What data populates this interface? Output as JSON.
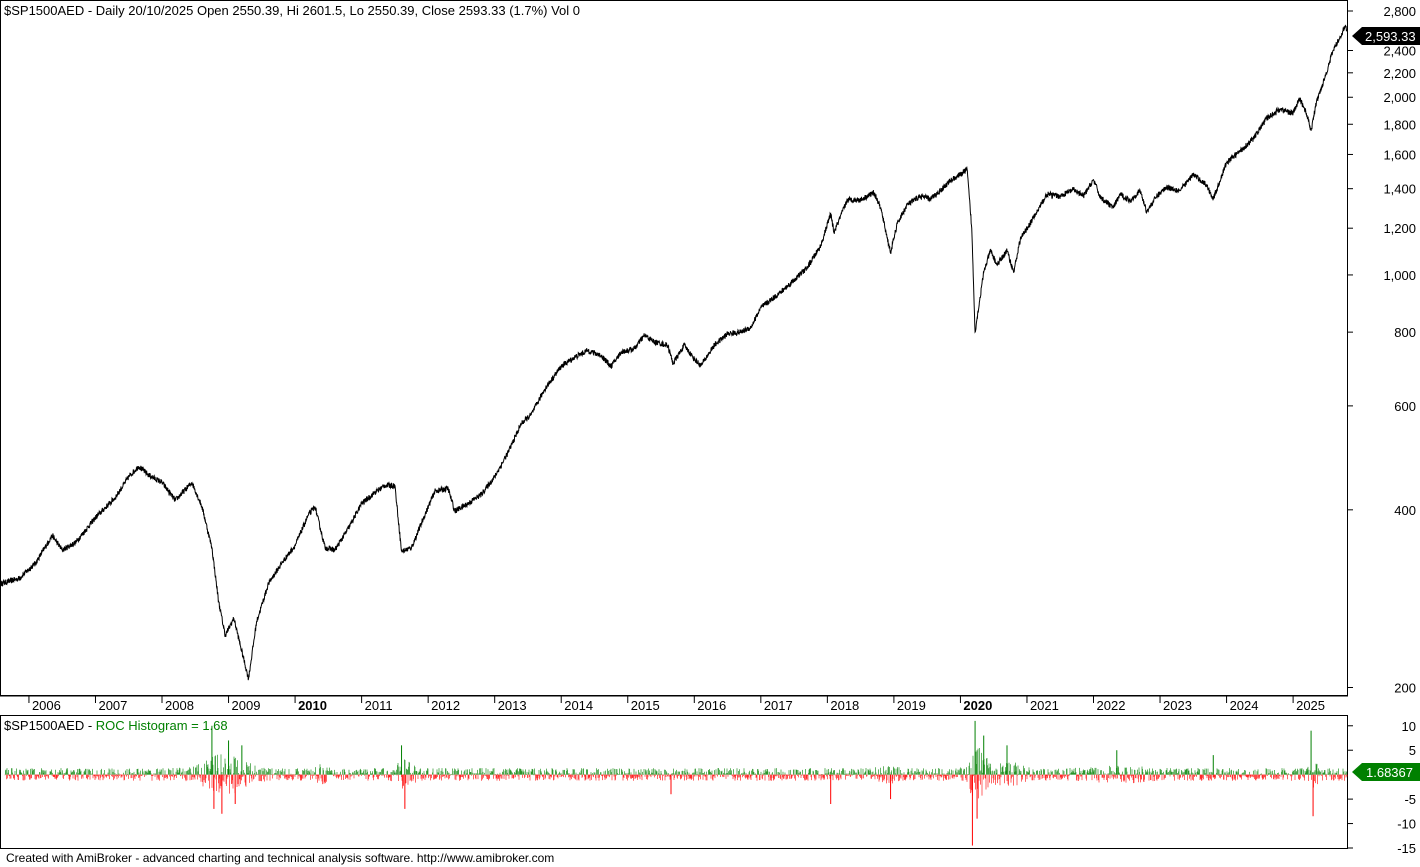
{
  "main_pane": {
    "title": "$SP1500AED - Daily 20/10/2025 Open 2550.39, Hi 2601.5, Lo 2550.39, Close 2593.33 (1.7%) Vol 0",
    "last_value_label": "2,593.33"
  },
  "roc_pane": {
    "title_symbol": "$SP1500AED - ",
    "title_indicator": "ROC Histogram = 1.68",
    "last_value_label": "1.68367"
  },
  "footer": "Created with AmiBroker - advanced charting and technical analysis software. http://www.amibroker.com",
  "colors": {
    "price_line": "#000000",
    "roc_positive": "#008000",
    "roc_negative": "#ff0000",
    "roc_title": "#008000",
    "value_box_main": "#000000",
    "value_box_roc": "#008000"
  },
  "chart_data": [
    {
      "type": "line",
      "scale": "log",
      "ylim": [
        195,
        2900
      ],
      "y_ticks": [
        {
          "v": 200,
          "label": "200"
        },
        {
          "v": 400,
          "label": "400"
        },
        {
          "v": 600,
          "label": "600"
        },
        {
          "v": 800,
          "label": "800"
        },
        {
          "v": 1000,
          "label": "1,000"
        },
        {
          "v": 1200,
          "label": "1,200"
        },
        {
          "v": 1400,
          "label": "1,400"
        },
        {
          "v": 1600,
          "label": "1,600"
        },
        {
          "v": 1800,
          "label": "1,800"
        },
        {
          "v": 2000,
          "label": "2,000"
        },
        {
          "v": 2200,
          "label": "2,200"
        },
        {
          "v": 2400,
          "label": "2,400"
        },
        {
          "v": 2800,
          "label": "2,800"
        }
      ],
      "x_range": [
        2005.58,
        2025.81
      ],
      "x_ticks": [
        {
          "year": 2006,
          "label": "2006",
          "bold": false
        },
        {
          "year": 2007,
          "label": "2007",
          "bold": false
        },
        {
          "year": 2008,
          "label": "2008",
          "bold": false
        },
        {
          "year": 2009,
          "label": "2009",
          "bold": false
        },
        {
          "year": 2010,
          "label": "2010",
          "bold": true
        },
        {
          "year": 2011,
          "label": "2011",
          "bold": false
        },
        {
          "year": 2012,
          "label": "2012",
          "bold": false
        },
        {
          "year": 2013,
          "label": "2013",
          "bold": false
        },
        {
          "year": 2014,
          "label": "2014",
          "bold": false
        },
        {
          "year": 2015,
          "label": "2015",
          "bold": false
        },
        {
          "year": 2016,
          "label": "2016",
          "bold": false
        },
        {
          "year": 2017,
          "label": "2017",
          "bold": false
        },
        {
          "year": 2018,
          "label": "2018",
          "bold": false
        },
        {
          "year": 2019,
          "label": "2019",
          "bold": false
        },
        {
          "year": 2020,
          "label": "2020",
          "bold": true
        },
        {
          "year": 2021,
          "label": "2021",
          "bold": false
        },
        {
          "year": 2022,
          "label": "2022",
          "bold": false
        },
        {
          "year": 2023,
          "label": "2023",
          "bold": false
        },
        {
          "year": 2024,
          "label": "2024",
          "bold": false
        },
        {
          "year": 2025,
          "label": "2025",
          "bold": false
        }
      ],
      "series": [
        {
          "points": [
            [
              2005.58,
              300
            ],
            [
              2005.85,
              306
            ],
            [
              2006.1,
              325
            ],
            [
              2006.35,
              362
            ],
            [
              2006.5,
              342
            ],
            [
              2006.7,
              352
            ],
            [
              2007.0,
              388
            ],
            [
              2007.3,
              420
            ],
            [
              2007.5,
              455
            ],
            [
              2007.65,
              474
            ],
            [
              2007.8,
              458
            ],
            [
              2008.0,
              445
            ],
            [
              2008.2,
              415
            ],
            [
              2008.45,
              445
            ],
            [
              2008.6,
              405
            ],
            [
              2008.75,
              345
            ],
            [
              2008.85,
              280
            ],
            [
              2008.95,
              245
            ],
            [
              2009.08,
              262
            ],
            [
              2009.18,
              235
            ],
            [
              2009.3,
              207
            ],
            [
              2009.42,
              258
            ],
            [
              2009.6,
              300
            ],
            [
              2009.8,
              325
            ],
            [
              2010.0,
              348
            ],
            [
              2010.2,
              392
            ],
            [
              2010.3,
              405
            ],
            [
              2010.45,
              345
            ],
            [
              2010.6,
              342
            ],
            [
              2010.8,
              372
            ],
            [
              2011.0,
              410
            ],
            [
              2011.2,
              428
            ],
            [
              2011.35,
              440
            ],
            [
              2011.5,
              440
            ],
            [
              2011.6,
              340
            ],
            [
              2011.75,
              345
            ],
            [
              2011.9,
              380
            ],
            [
              2012.1,
              430
            ],
            [
              2012.3,
              435
            ],
            [
              2012.4,
              398
            ],
            [
              2012.6,
              410
            ],
            [
              2012.8,
              425
            ],
            [
              2013.0,
              455
            ],
            [
              2013.2,
              500
            ],
            [
              2013.4,
              560
            ],
            [
              2013.55,
              580
            ],
            [
              2013.75,
              640
            ],
            [
              2014.0,
              700
            ],
            [
              2014.2,
              725
            ],
            [
              2014.4,
              745
            ],
            [
              2014.6,
              730
            ],
            [
              2014.75,
              700
            ],
            [
              2014.9,
              740
            ],
            [
              2015.1,
              750
            ],
            [
              2015.25,
              790
            ],
            [
              2015.4,
              770
            ],
            [
              2015.6,
              760
            ],
            [
              2015.68,
              708
            ],
            [
              2015.85,
              760
            ],
            [
              2016.0,
              720
            ],
            [
              2016.1,
              702
            ],
            [
              2016.3,
              760
            ],
            [
              2016.5,
              795
            ],
            [
              2016.7,
              800
            ],
            [
              2016.85,
              815
            ],
            [
              2017.0,
              880
            ],
            [
              2017.3,
              935
            ],
            [
              2017.5,
              980
            ],
            [
              2017.7,
              1030
            ],
            [
              2017.9,
              1120
            ],
            [
              2018.05,
              1270
            ],
            [
              2018.1,
              1180
            ],
            [
              2018.3,
              1340
            ],
            [
              2018.5,
              1340
            ],
            [
              2018.7,
              1380
            ],
            [
              2018.8,
              1300
            ],
            [
              2018.95,
              1090
            ],
            [
              2019.05,
              1220
            ],
            [
              2019.2,
              1315
            ],
            [
              2019.4,
              1360
            ],
            [
              2019.55,
              1345
            ],
            [
              2019.7,
              1390
            ],
            [
              2019.85,
              1445
            ],
            [
              2020.0,
              1480
            ],
            [
              2020.1,
              1510
            ],
            [
              2020.17,
              1200
            ],
            [
              2020.22,
              800
            ],
            [
              2020.35,
              1010
            ],
            [
              2020.45,
              1100
            ],
            [
              2020.55,
              1040
            ],
            [
              2020.7,
              1100
            ],
            [
              2020.8,
              1010
            ],
            [
              2020.9,
              1150
            ],
            [
              2021.1,
              1250
            ],
            [
              2021.3,
              1370
            ],
            [
              2021.5,
              1360
            ],
            [
              2021.7,
              1395
            ],
            [
              2021.85,
              1360
            ],
            [
              2022.0,
              1450
            ],
            [
              2022.1,
              1355
            ],
            [
              2022.3,
              1300
            ],
            [
              2022.4,
              1370
            ],
            [
              2022.55,
              1335
            ],
            [
              2022.7,
              1390
            ],
            [
              2022.8,
              1280
            ],
            [
              2022.95,
              1360
            ],
            [
              2023.1,
              1410
            ],
            [
              2023.3,
              1390
            ],
            [
              2023.5,
              1480
            ],
            [
              2023.7,
              1420
            ],
            [
              2023.8,
              1345
            ],
            [
              2024.0,
              1550
            ],
            [
              2024.2,
              1620
            ],
            [
              2024.4,
              1700
            ],
            [
              2024.6,
              1840
            ],
            [
              2024.8,
              1910
            ],
            [
              2025.0,
              1880
            ],
            [
              2025.1,
              1990
            ],
            [
              2025.2,
              1880
            ],
            [
              2025.27,
              1755
            ],
            [
              2025.35,
              1960
            ],
            [
              2025.5,
              2200
            ],
            [
              2025.6,
              2400
            ],
            [
              2025.7,
              2520
            ],
            [
              2025.78,
              2640
            ],
            [
              2025.81,
              2593.33
            ]
          ]
        }
      ]
    },
    {
      "type": "bar",
      "ylim": [
        -15,
        12
      ],
      "y_ticks": [
        {
          "v": 10,
          "label": "10"
        },
        {
          "v": 5,
          "label": "5"
        },
        {
          "v": -5,
          "label": "-5"
        },
        {
          "v": -10,
          "label": "-10"
        },
        {
          "v": -15,
          "label": "-15"
        }
      ],
      "spikes": [
        [
          2008.75,
          10
        ],
        [
          2008.78,
          -7
        ],
        [
          2008.9,
          -8
        ],
        [
          2009.0,
          7
        ],
        [
          2009.1,
          -6
        ],
        [
          2009.2,
          6
        ],
        [
          2011.6,
          6
        ],
        [
          2011.65,
          -7
        ],
        [
          2015.65,
          -4
        ],
        [
          2018.05,
          -6
        ],
        [
          2018.95,
          -5
        ],
        [
          2020.18,
          -14.5
        ],
        [
          2020.22,
          11
        ],
        [
          2020.25,
          -9
        ],
        [
          2020.35,
          8
        ],
        [
          2020.7,
          6
        ],
        [
          2022.35,
          5
        ],
        [
          2023.8,
          4
        ],
        [
          2025.27,
          9
        ],
        [
          2025.3,
          -8.5
        ]
      ],
      "last_value": 1.68367
    }
  ]
}
